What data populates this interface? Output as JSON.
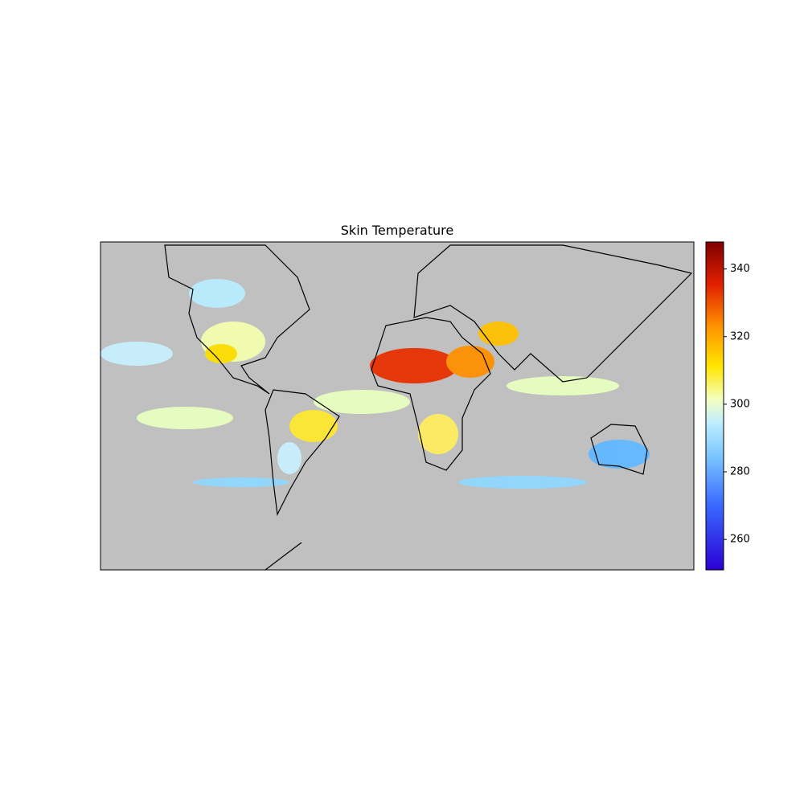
{
  "chart_data": {
    "type": "map",
    "title": "Skin Temperature",
    "colorbar": {
      "lim": [
        251,
        348
      ],
      "ticks": [
        260,
        280,
        300,
        320,
        340
      ]
    }
  }
}
